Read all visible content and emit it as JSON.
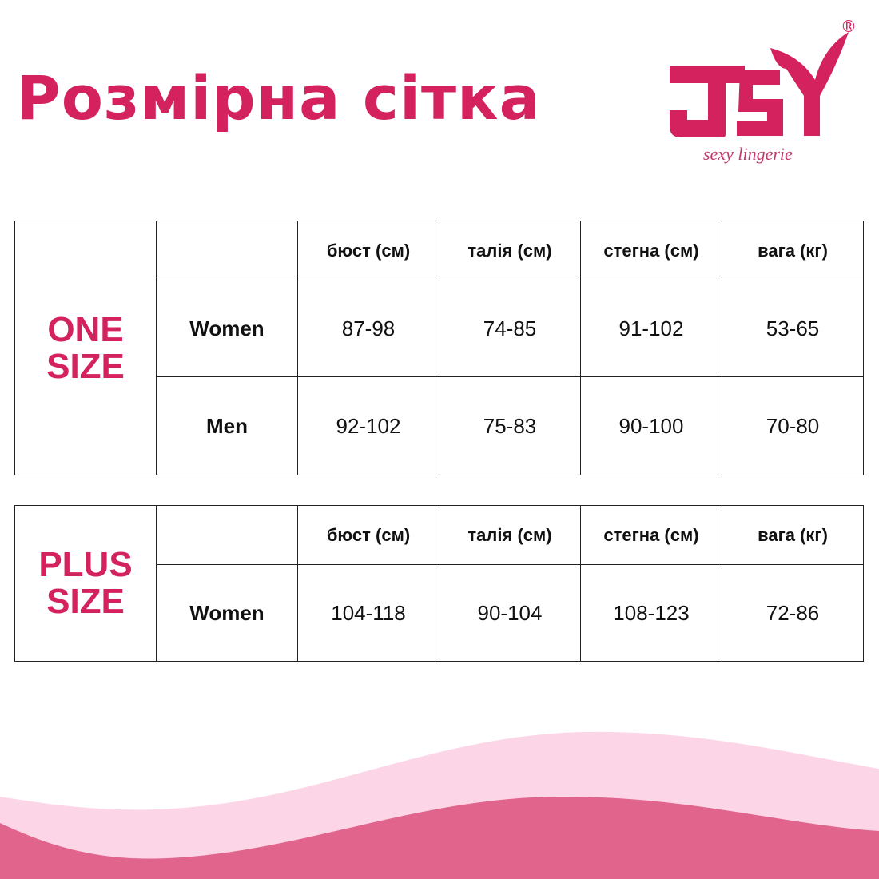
{
  "title": "Розмірна сітка",
  "logo": {
    "text": "JSY",
    "tagline": "sexy lingerie",
    "registered": "®"
  },
  "colors": {
    "accent": "#d3225d",
    "wave_light": "#fcd5e6",
    "wave_dark": "#e0648b"
  },
  "headers": [
    "бюст (см)",
    "талія (см)",
    "стегна (см)",
    "вага (кг)"
  ],
  "one_size": {
    "label_line1": "ONE",
    "label_line2": "SIZE",
    "rows": [
      {
        "label": "Women",
        "values": [
          "87-98",
          "74-85",
          "91-102",
          "53-65"
        ]
      },
      {
        "label": "Men",
        "values": [
          "92-102",
          "75-83",
          "90-100",
          "70-80"
        ]
      }
    ]
  },
  "plus_size": {
    "label_line1": "PLUS",
    "label_line2": "SIZE",
    "rows": [
      {
        "label": "Women",
        "values": [
          "104-118",
          "90-104",
          "108-123",
          "72-86"
        ]
      }
    ]
  }
}
